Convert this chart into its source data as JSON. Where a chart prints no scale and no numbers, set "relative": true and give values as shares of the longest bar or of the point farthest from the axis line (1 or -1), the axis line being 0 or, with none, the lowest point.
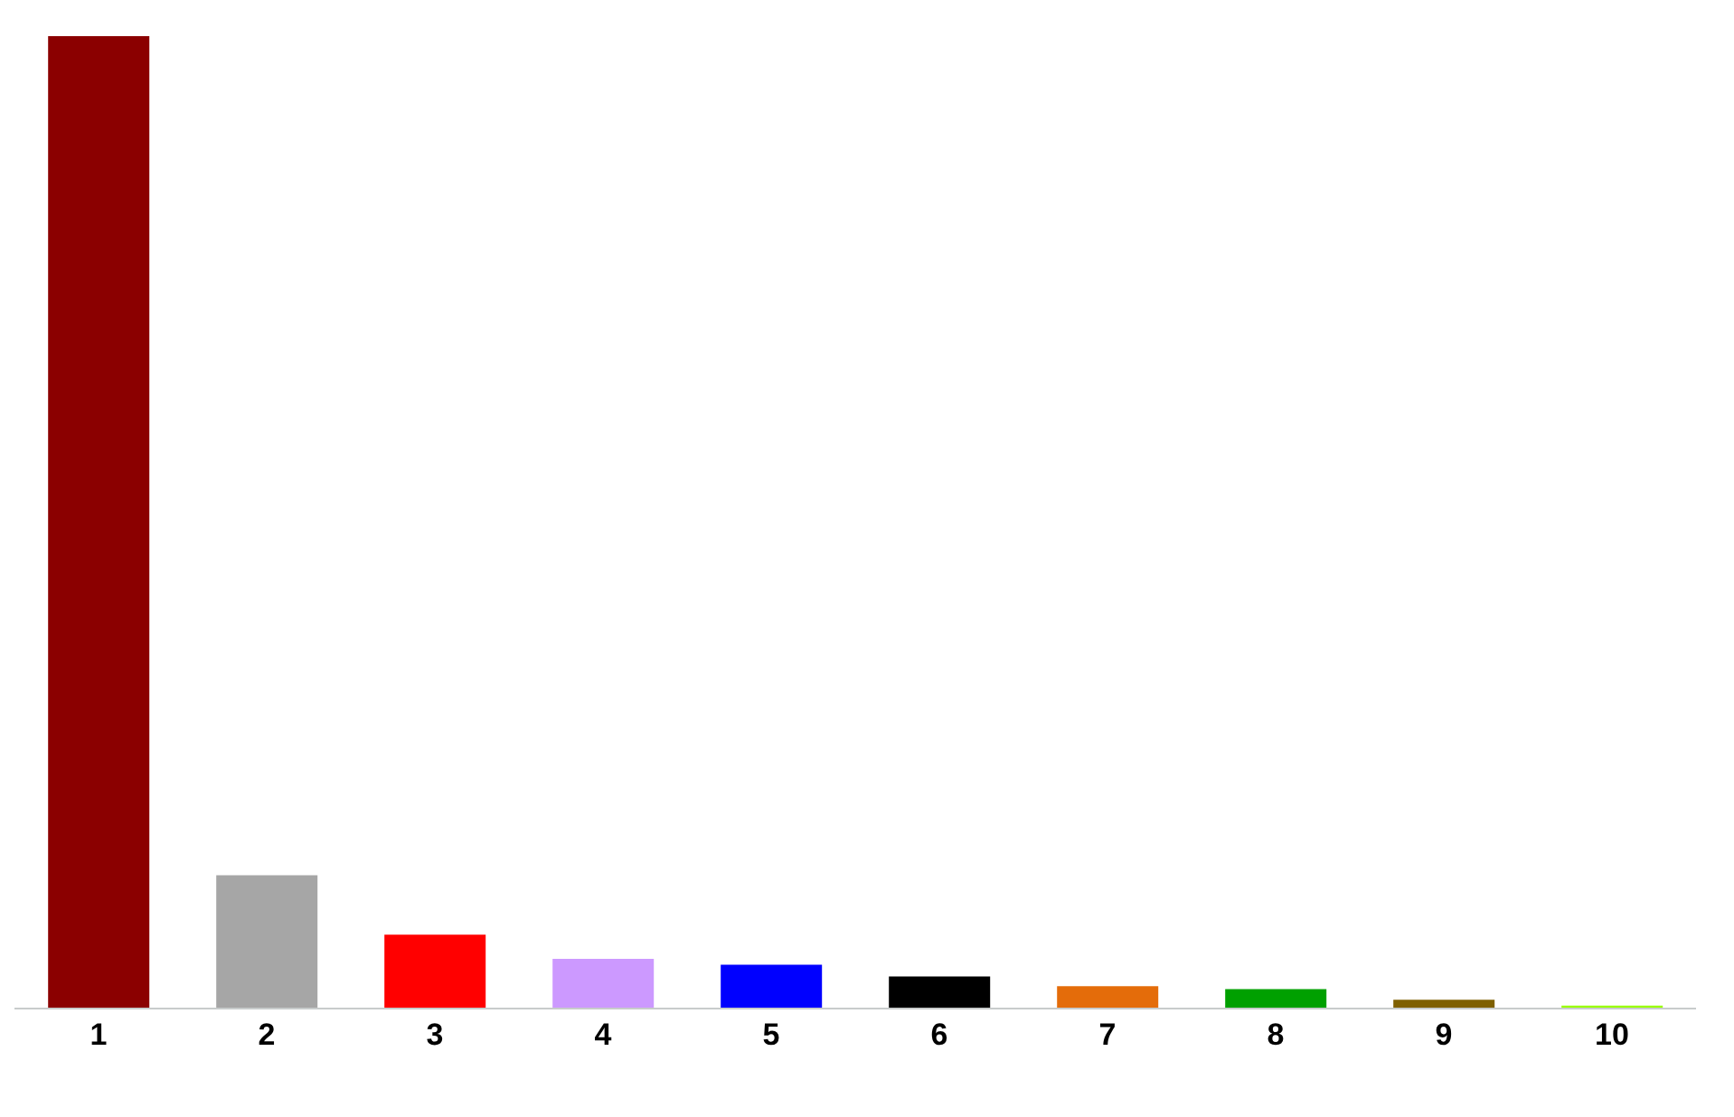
{
  "chart_data": {
    "type": "bar",
    "relative": true,
    "categories": [
      "1",
      "2",
      "3",
      "4",
      "5",
      "6",
      "7",
      "8",
      "9",
      "10"
    ],
    "values": [
      1,
      0.137,
      0.076,
      0.051,
      0.045,
      0.033,
      0.023,
      0.02,
      0.009,
      0.003
    ],
    "colors": [
      "#8b0000",
      "#a6a6a6",
      "#ff0000",
      "#cc99ff",
      "#0000ff",
      "#000000",
      "#e46c0a",
      "#00a000",
      "#7f6000",
      "#99ff00"
    ],
    "grid": false,
    "legend": false
  }
}
